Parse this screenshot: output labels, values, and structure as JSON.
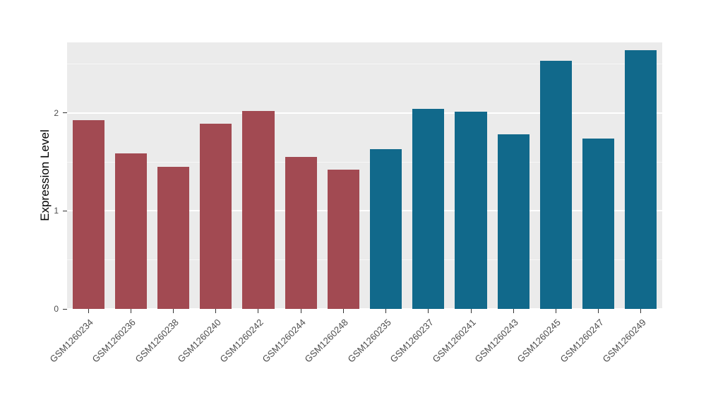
{
  "chart_data": {
    "type": "bar",
    "title": "",
    "ylabel": "Expression Level",
    "xlabel": "",
    "ylim": [
      0,
      2.72
    ],
    "yticks": [
      0,
      1,
      2
    ],
    "minor_gridlines": [
      0.5,
      1.5,
      2.5
    ],
    "grid": true,
    "legend_position": "none",
    "panel_background": "#EBEBEB",
    "gridline_color": "#FFFFFF",
    "tick_label_color": "#4D4D4D",
    "group_colors": {
      "group1": "#A24A52",
      "group2": "#11698B"
    },
    "categories": [
      "GSM1260234",
      "GSM1260236",
      "GSM1260238",
      "GSM1260240",
      "GSM1260242",
      "GSM1260244",
      "GSM1260248",
      "GSM1260235",
      "GSM1260237",
      "GSM1260241",
      "GSM1260243",
      "GSM1260245",
      "GSM1260247",
      "GSM1260249"
    ],
    "values": [
      1.93,
      1.59,
      1.45,
      1.89,
      2.02,
      1.55,
      1.42,
      1.63,
      2.04,
      2.01,
      1.78,
      2.53,
      1.74,
      2.64
    ],
    "bar_colors": [
      "#A24A52",
      "#A24A52",
      "#A24A52",
      "#A24A52",
      "#A24A52",
      "#A24A52",
      "#A24A52",
      "#11698B",
      "#11698B",
      "#11698B",
      "#11698B",
      "#11698B",
      "#11698B",
      "#11698B"
    ]
  }
}
